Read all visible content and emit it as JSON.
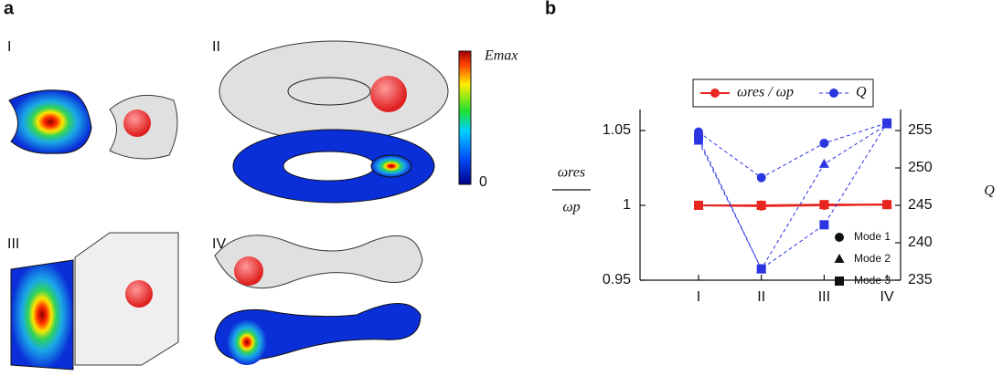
{
  "panels": {
    "a": "a",
    "b": "b",
    "structures": [
      "I",
      "II",
      "III",
      "IV"
    ],
    "colorbar_top": "Emax",
    "colorbar_bottom": "0"
  },
  "chart_data": {
    "type": "line",
    "y_label_top": "ωres",
    "y_label_bottom": "ωp",
    "y2_label": "Q",
    "categories": [
      "I",
      "II",
      "III",
      "IV"
    ],
    "ylim": [
      0.95,
      1.05
    ],
    "yticks": [
      0.95,
      1,
      1.05
    ],
    "y2lim": [
      235,
      255
    ],
    "y2ticks": [
      235,
      240,
      245,
      250,
      255
    ],
    "modes": [
      "Mode 1",
      "Mode 2",
      "Mode 3"
    ],
    "markers": [
      "circle",
      "triangle",
      "square"
    ],
    "series": [
      {
        "name": "ωres / ωp",
        "color": "#e8251f",
        "dash": false,
        "axis": "y1",
        "values": [
          [
            1,
            0.9995,
            1,
            1.0005
          ],
          [
            1,
            1,
            1,
            1.0005
          ],
          [
            1,
            1,
            1.0005,
            1.0005
          ]
        ]
      },
      {
        "name": "Q",
        "color": "#2b35e0",
        "dash": true,
        "axis": "y2",
        "values": [
          [
            254.8,
            248.7,
            253.3,
            256
          ],
          [
            253.6,
            236.5,
            250.5,
            255.8
          ],
          [
            254,
            236.5,
            242.4,
            256
          ]
        ]
      }
    ]
  }
}
